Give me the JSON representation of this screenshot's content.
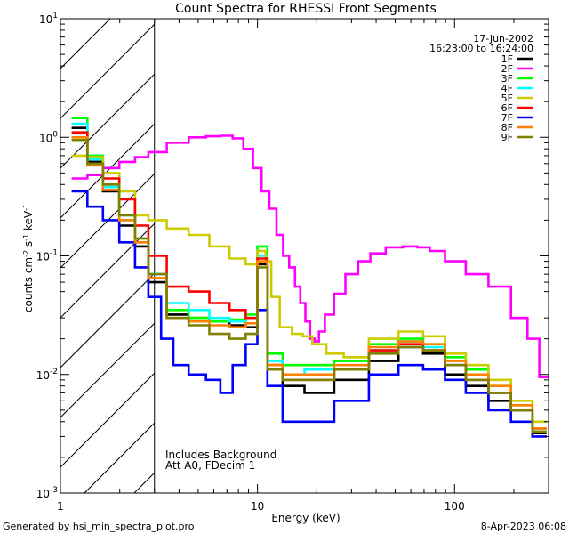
{
  "chart_data": {
    "type": "line",
    "title": "Count Spectra for RHESSI Front Segments",
    "xlabel": "Energy (keV)",
    "ylabel_parts": [
      "counts cm",
      "-2",
      " s",
      "-1",
      " keV",
      "-1"
    ],
    "x_scale": "log",
    "y_scale": "log",
    "xlim": [
      1,
      300
    ],
    "ylim": [
      0.001,
      10
    ],
    "x_ticks": [
      {
        "v": 1,
        "label": "1"
      },
      {
        "v": 10,
        "label": "10"
      },
      {
        "v": 100,
        "label": "100"
      }
    ],
    "y_ticks": [
      {
        "v": 0.001,
        "base": "10",
        "exp": "-3"
      },
      {
        "v": 0.01,
        "base": "10",
        "exp": "-2"
      },
      {
        "v": 0.1,
        "base": "10",
        "exp": "-1"
      },
      {
        "v": 1,
        "base": "10",
        "exp": "0"
      },
      {
        "v": 10,
        "base": "10",
        "exp": "1"
      }
    ],
    "shaded_region_x": [
      1,
      3
    ],
    "date": "17-Jun-2002",
    "time_range": "16:23:00 to 16:24:00",
    "annotations": [
      "Includes Background",
      "Att A0, FDecim 1"
    ],
    "legend_position": "top-right",
    "series": [
      {
        "name": "1F",
        "color": "#000000",
        "points": [
          [
            1.25,
            1.2
          ],
          [
            1.5,
            0.62
          ],
          [
            1.8,
            0.35
          ],
          [
            2.2,
            0.18
          ],
          [
            2.6,
            0.12
          ],
          [
            3,
            0.06
          ],
          [
            4,
            0.032
          ],
          [
            5,
            0.03
          ],
          [
            6.5,
            0.028
          ],
          [
            8,
            0.026
          ],
          [
            9.5,
            0.025
          ],
          [
            10.5,
            0.085
          ],
          [
            12,
            0.012
          ],
          [
            15,
            0.008
          ],
          [
            20,
            0.007
          ],
          [
            30,
            0.009
          ],
          [
            45,
            0.013
          ],
          [
            60,
            0.017
          ],
          [
            80,
            0.015
          ],
          [
            100,
            0.01
          ],
          [
            130,
            0.008
          ],
          [
            170,
            0.006
          ],
          [
            220,
            0.005
          ],
          [
            280,
            0.0032
          ]
        ]
      },
      {
        "name": "2F",
        "color": "#ff00ff",
        "points": [
          [
            1.25,
            0.45
          ],
          [
            1.5,
            0.48
          ],
          [
            1.8,
            0.55
          ],
          [
            2.2,
            0.62
          ],
          [
            2.6,
            0.68
          ],
          [
            3,
            0.75
          ],
          [
            4,
            0.9
          ],
          [
            5,
            1.0
          ],
          [
            6,
            1.02
          ],
          [
            7,
            1.03
          ],
          [
            8,
            0.98
          ],
          [
            9,
            0.8
          ],
          [
            10,
            0.55
          ],
          [
            11,
            0.35
          ],
          [
            12,
            0.25
          ],
          [
            13,
            0.15
          ],
          [
            14,
            0.1
          ],
          [
            15,
            0.08
          ],
          [
            16,
            0.055
          ],
          [
            17,
            0.04
          ],
          [
            18,
            0.028
          ],
          [
            19,
            0.02
          ],
          [
            20,
            0.019
          ],
          [
            21,
            0.023
          ],
          [
            23,
            0.032
          ],
          [
            26,
            0.048
          ],
          [
            30,
            0.07
          ],
          [
            35,
            0.09
          ],
          [
            40,
            0.105
          ],
          [
            50,
            0.118
          ],
          [
            60,
            0.12
          ],
          [
            70,
            0.118
          ],
          [
            80,
            0.11
          ],
          [
            100,
            0.09
          ],
          [
            130,
            0.07
          ],
          [
            170,
            0.055
          ],
          [
            220,
            0.03
          ],
          [
            250,
            0.02
          ],
          [
            290,
            0.0095
          ]
        ]
      },
      {
        "name": "3F",
        "color": "#00ff00",
        "points": [
          [
            1.25,
            1.45
          ],
          [
            1.5,
            0.7
          ],
          [
            1.8,
            0.4
          ],
          [
            2.2,
            0.22
          ],
          [
            2.6,
            0.14
          ],
          [
            3,
            0.07
          ],
          [
            4,
            0.035
          ],
          [
            5,
            0.03
          ],
          [
            6.5,
            0.028
          ],
          [
            8,
            0.029
          ],
          [
            9.5,
            0.032
          ],
          [
            10.5,
            0.12
          ],
          [
            12,
            0.015
          ],
          [
            15,
            0.012
          ],
          [
            20,
            0.012
          ],
          [
            30,
            0.013
          ],
          [
            45,
            0.018
          ],
          [
            60,
            0.02
          ],
          [
            80,
            0.018
          ],
          [
            100,
            0.014
          ],
          [
            130,
            0.011
          ],
          [
            170,
            0.008
          ],
          [
            220,
            0.0055
          ],
          [
            280,
            0.0035
          ]
        ]
      },
      {
        "name": "4F",
        "color": "#00ffff",
        "points": [
          [
            1.25,
            1.3
          ],
          [
            1.5,
            0.65
          ],
          [
            1.8,
            0.38
          ],
          [
            2.2,
            0.2
          ],
          [
            2.6,
            0.13
          ],
          [
            3,
            0.07
          ],
          [
            4,
            0.04
          ],
          [
            5,
            0.035
          ],
          [
            6.5,
            0.03
          ],
          [
            8,
            0.028
          ],
          [
            9.5,
            0.03
          ],
          [
            10.5,
            0.1
          ],
          [
            12,
            0.013
          ],
          [
            15,
            0.01
          ],
          [
            20,
            0.011
          ],
          [
            30,
            0.011
          ],
          [
            45,
            0.016
          ],
          [
            60,
            0.019
          ],
          [
            80,
            0.017
          ],
          [
            100,
            0.012
          ],
          [
            130,
            0.009
          ],
          [
            170,
            0.007
          ],
          [
            220,
            0.005
          ],
          [
            280,
            0.0033
          ]
        ]
      },
      {
        "name": "5F",
        "color": "#cccc00",
        "points": [
          [
            1.25,
            0.7
          ],
          [
            1.5,
            0.68
          ],
          [
            1.8,
            0.5
          ],
          [
            2.2,
            0.35
          ],
          [
            2.6,
            0.22
          ],
          [
            3,
            0.2
          ],
          [
            4,
            0.17
          ],
          [
            5,
            0.15
          ],
          [
            6.5,
            0.12
          ],
          [
            8,
            0.095
          ],
          [
            9.5,
            0.085
          ],
          [
            10.5,
            0.11
          ],
          [
            11.5,
            0.09
          ],
          [
            12,
            0.045
          ],
          [
            14,
            0.025
          ],
          [
            16,
            0.022
          ],
          [
            18,
            0.021
          ],
          [
            20,
            0.018
          ],
          [
            25,
            0.015
          ],
          [
            30,
            0.014
          ],
          [
            45,
            0.02
          ],
          [
            60,
            0.023
          ],
          [
            80,
            0.021
          ],
          [
            100,
            0.015
          ],
          [
            130,
            0.012
          ],
          [
            170,
            0.009
          ],
          [
            220,
            0.006
          ],
          [
            280,
            0.004
          ]
        ]
      },
      {
        "name": "6F",
        "color": "#ff0000",
        "points": [
          [
            1.25,
            1.1
          ],
          [
            1.5,
            0.6
          ],
          [
            1.8,
            0.45
          ],
          [
            2.2,
            0.3
          ],
          [
            2.6,
            0.18
          ],
          [
            3,
            0.1
          ],
          [
            4,
            0.055
          ],
          [
            5,
            0.05
          ],
          [
            6.5,
            0.04
          ],
          [
            8,
            0.035
          ],
          [
            9.5,
            0.03
          ],
          [
            10.5,
            0.095
          ],
          [
            12,
            0.012
          ],
          [
            15,
            0.009
          ],
          [
            20,
            0.009
          ],
          [
            30,
            0.011
          ],
          [
            45,
            0.016
          ],
          [
            60,
            0.018
          ],
          [
            80,
            0.016
          ],
          [
            100,
            0.012
          ],
          [
            130,
            0.009
          ],
          [
            170,
            0.007
          ],
          [
            220,
            0.005
          ],
          [
            280,
            0.0035
          ]
        ]
      },
      {
        "name": "7F",
        "color": "#0000ff",
        "points": [
          [
            1.25,
            0.35
          ],
          [
            1.5,
            0.26
          ],
          [
            1.8,
            0.2
          ],
          [
            2.2,
            0.13
          ],
          [
            2.6,
            0.08
          ],
          [
            3,
            0.045
          ],
          [
            3.5,
            0.02
          ],
          [
            4,
            0.012
          ],
          [
            5,
            0.01
          ],
          [
            6,
            0.009
          ],
          [
            7,
            0.007
          ],
          [
            8,
            0.012
          ],
          [
            9.5,
            0.018
          ],
          [
            10.5,
            0.035
          ],
          [
            12,
            0.008
          ],
          [
            15,
            0.004
          ],
          [
            20,
            0.004
          ],
          [
            30,
            0.006
          ],
          [
            45,
            0.01
          ],
          [
            60,
            0.012
          ],
          [
            80,
            0.011
          ],
          [
            100,
            0.009
          ],
          [
            130,
            0.007
          ],
          [
            170,
            0.005
          ],
          [
            220,
            0.004
          ],
          [
            280,
            0.003
          ]
        ]
      },
      {
        "name": "8F",
        "color": "#ff8000",
        "points": [
          [
            1.25,
            1.0
          ],
          [
            1.5,
            0.58
          ],
          [
            1.8,
            0.36
          ],
          [
            2.2,
            0.2
          ],
          [
            2.6,
            0.13
          ],
          [
            3,
            0.065
          ],
          [
            4,
            0.03
          ],
          [
            5,
            0.028
          ],
          [
            6.5,
            0.026
          ],
          [
            8,
            0.025
          ],
          [
            9.5,
            0.027
          ],
          [
            10.5,
            0.09
          ],
          [
            12,
            0.012
          ],
          [
            15,
            0.01
          ],
          [
            20,
            0.01
          ],
          [
            30,
            0.012
          ],
          [
            45,
            0.017
          ],
          [
            60,
            0.019
          ],
          [
            80,
            0.018
          ],
          [
            100,
            0.013
          ],
          [
            130,
            0.01
          ],
          [
            170,
            0.008
          ],
          [
            220,
            0.0055
          ],
          [
            280,
            0.0035
          ]
        ]
      },
      {
        "name": "9F",
        "color": "#808000",
        "points": [
          [
            1.25,
            0.95
          ],
          [
            1.5,
            0.6
          ],
          [
            1.8,
            0.4
          ],
          [
            2.2,
            0.22
          ],
          [
            2.6,
            0.14
          ],
          [
            3,
            0.07
          ],
          [
            4,
            0.03
          ],
          [
            5,
            0.026
          ],
          [
            6.5,
            0.022
          ],
          [
            8,
            0.02
          ],
          [
            9.5,
            0.022
          ],
          [
            10.5,
            0.08
          ],
          [
            12,
            0.011
          ],
          [
            15,
            0.009
          ],
          [
            20,
            0.009
          ],
          [
            30,
            0.011
          ],
          [
            45,
            0.015
          ],
          [
            60,
            0.017
          ],
          [
            80,
            0.016
          ],
          [
            100,
            0.012
          ],
          [
            130,
            0.009
          ],
          [
            170,
            0.007
          ],
          [
            220,
            0.005
          ],
          [
            280,
            0.0033
          ]
        ]
      }
    ]
  },
  "footer": {
    "generated_by": "Generated by hsi_min_spectra_plot.pro",
    "timestamp": "8-Apr-2023 06:08"
  }
}
